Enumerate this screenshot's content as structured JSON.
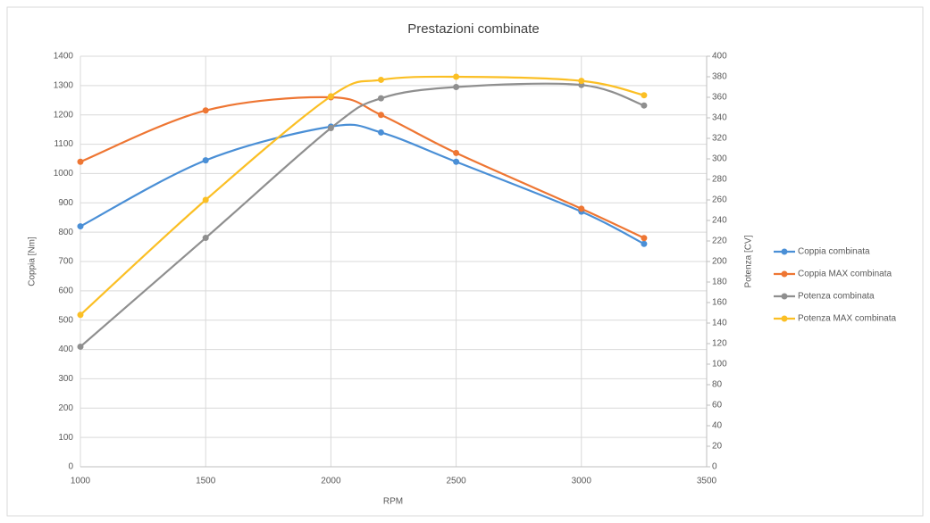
{
  "chart_data": {
    "type": "line",
    "title": "Prestazioni combinate",
    "x_label": "RPM",
    "y_label": "Coppia [Nm]",
    "y2_label": "Potenza [CV]",
    "x": [
      1000,
      1500,
      2000,
      2200,
      2500,
      3000,
      3250
    ],
    "series": [
      {
        "name": "Coppia combinata",
        "color": "#4a8fd6",
        "values": [
          820,
          1045,
          1160,
          1140,
          1040,
          870,
          760
        ]
      },
      {
        "name": "Coppia MAX combinata",
        "color": "#ee7633",
        "values": [
          1040,
          1215,
          1260,
          1200,
          1070,
          880,
          780
        ]
      },
      {
        "name": "Potenza combinata",
        "color": "#8f8f8f",
        "axis": "y2",
        "values": [
          117,
          223,
          330,
          359,
          370,
          372,
          352
        ]
      },
      {
        "name": "Potenza MAX combinata",
        "color": "#fbbf24",
        "axis": "y2",
        "values": [
          148,
          260,
          361,
          377,
          380,
          376,
          362
        ]
      }
    ],
    "xlim": [
      1000,
      3500
    ],
    "xticks": [
      1000,
      1500,
      2000,
      2500,
      3000,
      3500
    ],
    "ylim": [
      0,
      1400
    ],
    "yticks": [
      0,
      100,
      200,
      300,
      400,
      500,
      600,
      700,
      800,
      900,
      1000,
      1100,
      1200,
      1300,
      1400
    ],
    "y2lim": [
      0,
      400
    ],
    "y2ticks": [
      0,
      20,
      40,
      60,
      80,
      100,
      120,
      140,
      160,
      180,
      200,
      220,
      240,
      260,
      280,
      300,
      320,
      340,
      360,
      380,
      400
    ],
    "grid": true,
    "legend": "right"
  }
}
